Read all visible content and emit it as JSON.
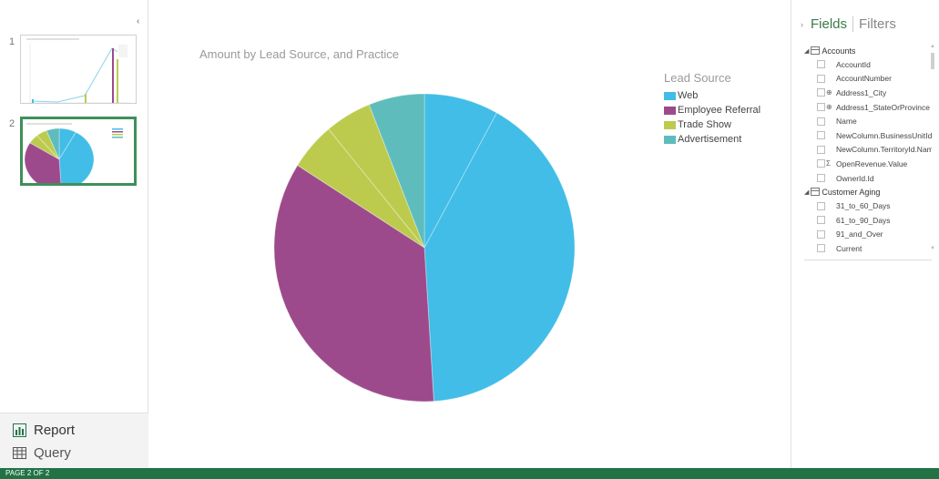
{
  "navigator": {
    "pages": [
      {
        "number": "1",
        "selected": false
      },
      {
        "number": "2",
        "selected": true
      }
    ],
    "collapse_glyph": "‹"
  },
  "views": [
    {
      "label": "Report",
      "icon": "bar-chart-icon"
    },
    {
      "label": "Query",
      "icon": "table-grid-icon"
    }
  ],
  "chart_data": {
    "type": "pie",
    "title": "Amount by Lead Source, and Practice",
    "legend_title": "Lead Source",
    "legend_position": "right",
    "series": [
      {
        "name": "Web",
        "color": "#41bde7"
      },
      {
        "name": "Employee Referral",
        "color": "#9c4a8c"
      },
      {
        "name": "Trade Show",
        "color": "#bccb4e"
      },
      {
        "name": "Advertisement",
        "color": "#5fbcbc"
      }
    ],
    "slices": [
      {
        "series": "Web",
        "value": 8
      },
      {
        "series": "Web",
        "value": 41
      },
      {
        "series": "Employee Referral",
        "value": 35
      },
      {
        "series": "Trade Show",
        "value": 5
      },
      {
        "series": "Trade Show",
        "value": 5
      },
      {
        "series": "Advertisement",
        "value": 6
      }
    ]
  },
  "fields_pane": {
    "tab_fields": "Fields",
    "tab_filters": "Filters",
    "expand_glyph": "›",
    "groups": [
      {
        "name": "Accounts",
        "fields": [
          {
            "name": "AccountId",
            "glyph": ""
          },
          {
            "name": "AccountNumber",
            "glyph": ""
          },
          {
            "name": "Address1_City",
            "glyph": "⊕"
          },
          {
            "name": "Address1_StateOrProvince",
            "glyph": "⊕"
          },
          {
            "name": "Name",
            "glyph": ""
          },
          {
            "name": "NewColumn.BusinessUnitId...",
            "glyph": ""
          },
          {
            "name": "NewColumn.TerritoryId.Name",
            "glyph": ""
          },
          {
            "name": "OpenRevenue.Value",
            "glyph": "Σ"
          },
          {
            "name": "OwnerId.Id",
            "glyph": ""
          }
        ]
      },
      {
        "name": "Customer Aging",
        "fields": [
          {
            "name": "31_to_60_Days",
            "glyph": ""
          },
          {
            "name": "61_to_90_Days",
            "glyph": ""
          },
          {
            "name": "91_and_Over",
            "glyph": ""
          },
          {
            "name": "Current",
            "glyph": ""
          }
        ]
      }
    ]
  },
  "status_bar": {
    "page_indicator": "PAGE 2 OF 2"
  }
}
